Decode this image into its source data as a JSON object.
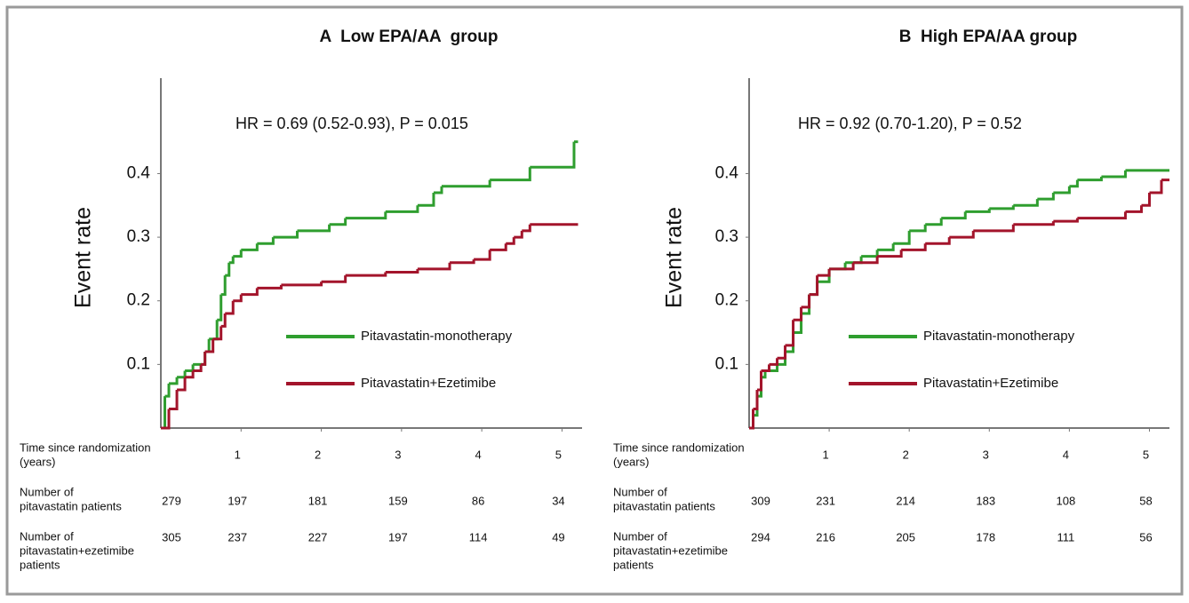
{
  "chart_data": [
    {
      "type": "step",
      "title": "A  Low EPA/AA  group",
      "ylabel": "Event rate",
      "xlabel": [
        "Time since randomization",
        "(years)"
      ],
      "annotation": "HR = 0.69 (0.52-0.93), P = 0.015",
      "xlim": [
        0,
        5.25
      ],
      "ylim": [
        0,
        0.55
      ],
      "xticks": [
        1,
        2,
        3,
        4,
        5
      ],
      "yticks": [
        0.1,
        0.2,
        0.3,
        0.4
      ],
      "legend": "center-right",
      "series": [
        {
          "name": "Pitavastatin-monotherapy",
          "color": "#2f9e2f",
          "x": [
            0,
            0.05,
            0.1,
            0.2,
            0.3,
            0.4,
            0.5,
            0.55,
            0.6,
            0.7,
            0.75,
            0.8,
            0.85,
            0.9,
            1,
            1.2,
            1.4,
            1.7,
            2.1,
            2.3,
            2.8,
            3.2,
            3.4,
            3.5,
            4.1,
            4.6,
            5.15,
            5.2
          ],
          "values": [
            0,
            0.05,
            0.07,
            0.08,
            0.09,
            0.1,
            0.1,
            0.12,
            0.14,
            0.17,
            0.21,
            0.24,
            0.26,
            0.27,
            0.28,
            0.29,
            0.3,
            0.31,
            0.32,
            0.33,
            0.34,
            0.35,
            0.37,
            0.38,
            0.39,
            0.41,
            0.45,
            0.45
          ]
        },
        {
          "name": "Pitavastatin+Ezetimibe",
          "color": "#a3142b",
          "x": [
            0,
            0.1,
            0.2,
            0.3,
            0.4,
            0.5,
            0.55,
            0.65,
            0.75,
            0.8,
            0.9,
            1,
            1.2,
            1.5,
            2.0,
            2.3,
            2.8,
            3.2,
            3.6,
            3.9,
            4.1,
            4.3,
            4.4,
            4.5,
            4.6,
            5.2
          ],
          "values": [
            0,
            0.03,
            0.06,
            0.08,
            0.09,
            0.1,
            0.12,
            0.14,
            0.16,
            0.18,
            0.2,
            0.21,
            0.22,
            0.225,
            0.23,
            0.24,
            0.245,
            0.25,
            0.26,
            0.265,
            0.28,
            0.29,
            0.3,
            0.31,
            0.32,
            0.32
          ]
        }
      ],
      "risk_table": [
        {
          "label": [
            "Number of",
            "pitavastatin patients"
          ],
          "counts": [
            279,
            197,
            181,
            159,
            86,
            34
          ]
        },
        {
          "label": [
            "Number of",
            "pitavastatin+ezetimibe",
            "patients"
          ],
          "counts": [
            305,
            237,
            227,
            197,
            114,
            49
          ]
        }
      ]
    },
    {
      "type": "step",
      "title": "B  High EPA/AA group",
      "ylabel": "Event rate",
      "xlabel": [
        "Time since randomization",
        "(years)"
      ],
      "annotation": "HR = 0.92 (0.70-1.20), P = 0.52",
      "xlim": [
        0,
        5.25
      ],
      "ylim": [
        0,
        0.55
      ],
      "xticks": [
        1,
        2,
        3,
        4,
        5
      ],
      "yticks": [
        0.1,
        0.2,
        0.3,
        0.4
      ],
      "legend": "center-right",
      "series": [
        {
          "name": "Pitavastatin-monotherapy",
          "color": "#2f9e2f",
          "x": [
            0,
            0.05,
            0.1,
            0.15,
            0.2,
            0.35,
            0.45,
            0.55,
            0.65,
            0.75,
            0.85,
            1,
            1.2,
            1.4,
            1.6,
            1.8,
            2.0,
            2.2,
            2.4,
            2.7,
            3.0,
            3.3,
            3.6,
            3.8,
            4.0,
            4.1,
            4.4,
            4.7,
            5.25
          ],
          "values": [
            0,
            0.02,
            0.05,
            0.08,
            0.09,
            0.1,
            0.12,
            0.15,
            0.18,
            0.21,
            0.23,
            0.25,
            0.26,
            0.27,
            0.28,
            0.29,
            0.31,
            0.32,
            0.33,
            0.34,
            0.345,
            0.35,
            0.36,
            0.37,
            0.38,
            0.39,
            0.395,
            0.405,
            0.405
          ]
        },
        {
          "name": "Pitavastatin+Ezetimibe",
          "color": "#a3142b",
          "x": [
            0,
            0.05,
            0.1,
            0.15,
            0.25,
            0.35,
            0.45,
            0.55,
            0.65,
            0.75,
            0.85,
            1,
            1.3,
            1.6,
            1.9,
            2.2,
            2.5,
            2.8,
            3.3,
            3.8,
            4.1,
            4.7,
            4.9,
            5.0,
            5.15,
            5.25
          ],
          "values": [
            0,
            0.03,
            0.06,
            0.09,
            0.1,
            0.11,
            0.13,
            0.17,
            0.19,
            0.21,
            0.24,
            0.25,
            0.26,
            0.27,
            0.28,
            0.29,
            0.3,
            0.31,
            0.32,
            0.325,
            0.33,
            0.34,
            0.35,
            0.37,
            0.39,
            0.39
          ]
        }
      ],
      "risk_table": [
        {
          "label": [
            "Number of",
            "pitavastatin patients"
          ],
          "counts": [
            309,
            231,
            214,
            183,
            108,
            58
          ]
        },
        {
          "label": [
            "Number of",
            "pitavastatin+ezetimibe",
            "patients"
          ],
          "counts": [
            294,
            216,
            205,
            178,
            111,
            56
          ]
        }
      ]
    }
  ]
}
